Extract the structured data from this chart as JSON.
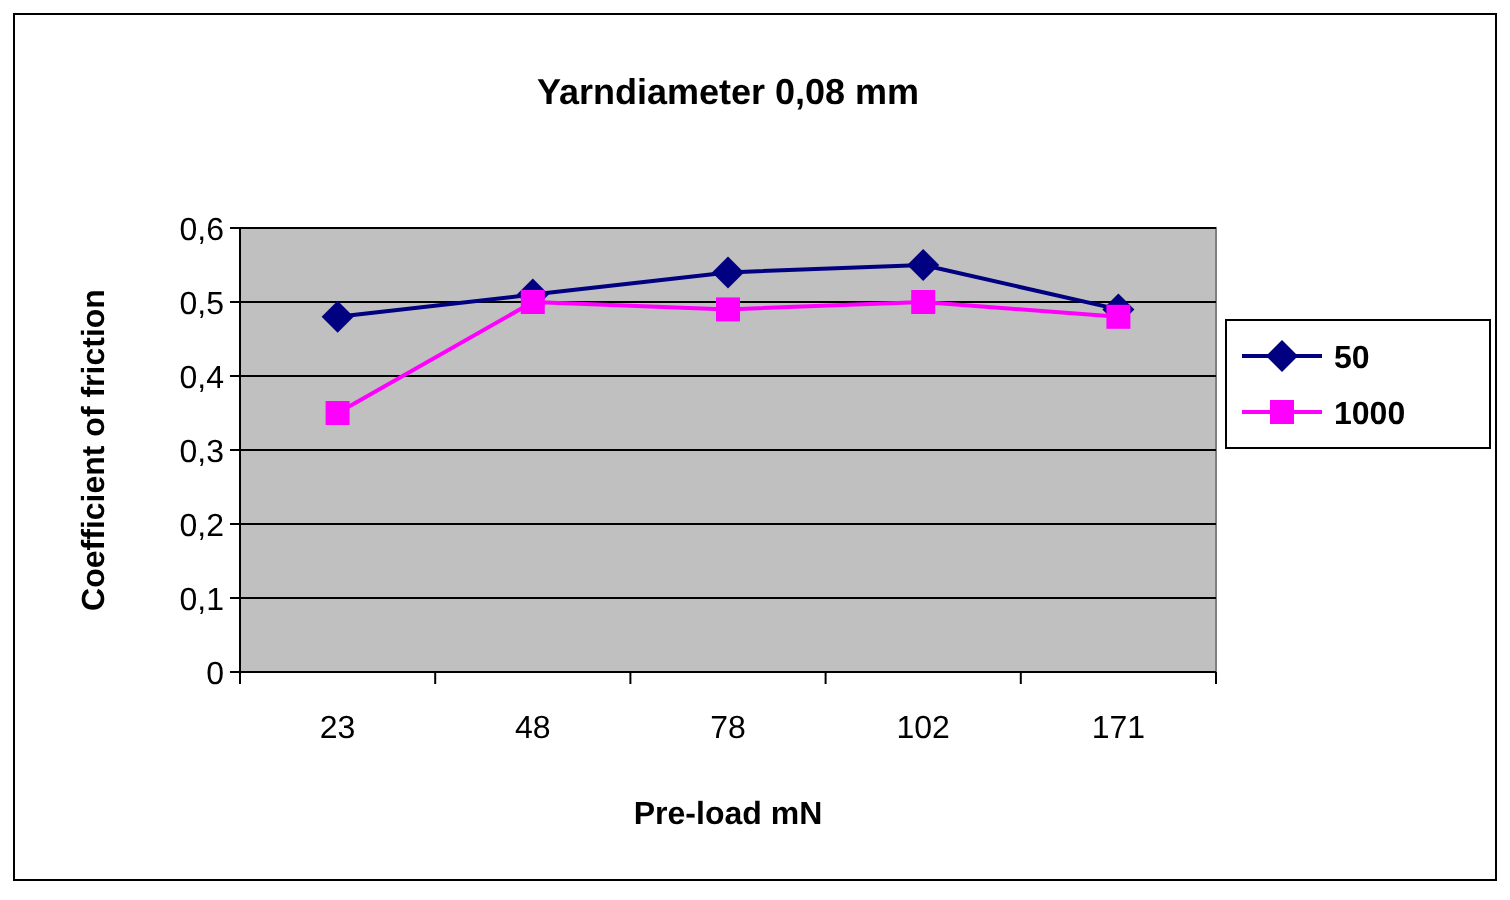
{
  "chart_data": {
    "type": "line",
    "title": "Yarndiameter 0,08 mm",
    "xlabel": "Pre-load mN",
    "ylabel": "Coefficient of friction",
    "categories": [
      "23",
      "48",
      "78",
      "102",
      "171"
    ],
    "series": [
      {
        "name": "50",
        "color": "#000080",
        "marker": "diamond",
        "values": [
          0.48,
          0.51,
          0.54,
          0.55,
          0.49
        ]
      },
      {
        "name": "1000",
        "color": "#ff00ff",
        "marker": "square",
        "values": [
          0.35,
          0.5,
          0.49,
          0.5,
          0.48
        ]
      }
    ],
    "ylim": [
      0,
      0.6
    ],
    "yticks": [
      {
        "value": 0,
        "label": "0"
      },
      {
        "value": 0.1,
        "label": "0,1"
      },
      {
        "value": 0.2,
        "label": "0,2"
      },
      {
        "value": 0.3,
        "label": "0,3"
      },
      {
        "value": 0.4,
        "label": "0,4"
      },
      {
        "value": 0.5,
        "label": "0,5"
      },
      {
        "value": 0.6,
        "label": "0,6"
      }
    ],
    "grid": "y",
    "legend": "right",
    "line_style": "solid"
  }
}
